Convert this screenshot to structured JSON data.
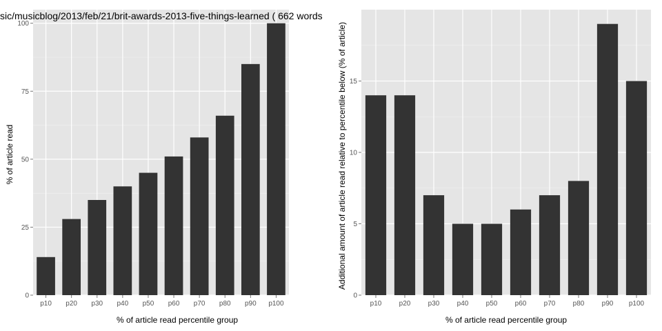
{
  "chart_data": [
    {
      "type": "bar",
      "title": "sic/musicblog/2013/feb/21/brit-awards-2013-five-things-learned ( 662 words",
      "xlabel": "% of article read percentile group",
      "ylabel": "% of article read",
      "categories": [
        "p10",
        "p20",
        "p30",
        "p40",
        "p50",
        "p60",
        "p70",
        "p80",
        "p90",
        "p100"
      ],
      "values": [
        14,
        28,
        35,
        40,
        45,
        51,
        58,
        66,
        85,
        100
      ],
      "ylim": [
        0,
        105
      ],
      "yticks": [
        0,
        25,
        50,
        75,
        100
      ],
      "grid": true,
      "colors": {
        "bar": "#333333",
        "panel": "#e5e5e5",
        "grid": "#ffffff"
      }
    },
    {
      "type": "bar",
      "title": "",
      "xlabel": "% of article read percentile group",
      "ylabel": "Additional amount of article read relative to percentile below (% of article)",
      "categories": [
        "p10",
        "p20",
        "p30",
        "p40",
        "p50",
        "p60",
        "p70",
        "p80",
        "p90",
        "p100"
      ],
      "values": [
        14,
        14,
        7,
        5,
        5,
        6,
        7,
        8,
        19,
        15
      ],
      "ylim": [
        0,
        20
      ],
      "yticks": [
        0,
        5,
        10,
        15
      ],
      "grid": true,
      "colors": {
        "bar": "#333333",
        "panel": "#e5e5e5",
        "grid": "#ffffff"
      }
    }
  ]
}
